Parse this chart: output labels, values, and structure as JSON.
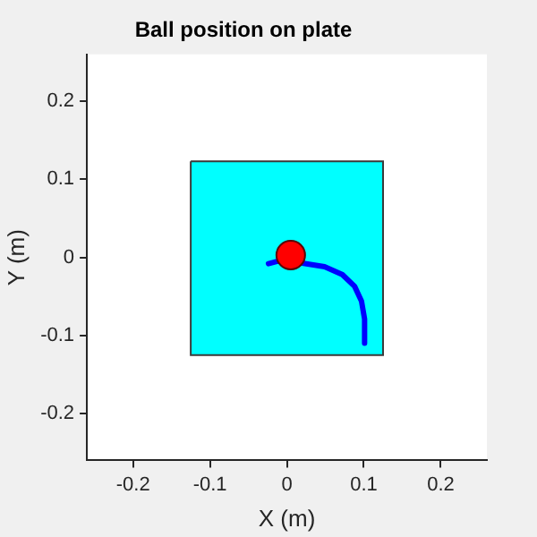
{
  "chart_data": {
    "type": "scatter",
    "title": "Ball position on plate",
    "xlabel": "X (m)",
    "ylabel": "Y (m)",
    "xlim": [
      -0.26,
      0.26
    ],
    "ylim": [
      -0.26,
      0.26
    ],
    "xticks": [
      -0.2,
      -0.1,
      0,
      0.1,
      0.2
    ],
    "yticks": [
      -0.2,
      -0.1,
      0,
      0.1,
      0.2
    ],
    "grid": false,
    "legend": false,
    "series": [
      {
        "type": "area",
        "color": "#00ffff",
        "x": [
          -0.125,
          0.125,
          0.125,
          -0.125,
          -0.125
        ],
        "values": [
          0.123,
          0.123,
          -0.125,
          -0.125,
          0.123
        ]
      },
      {
        "type": "line",
        "color": "#0000ff",
        "line_style": "solid",
        "x": [
          -0.024,
          -0.012,
          0.018,
          0.049,
          0.072,
          0.088,
          0.097,
          0.101,
          0.101
        ],
        "values": [
          -0.008,
          -0.005,
          -0.007,
          -0.012,
          -0.022,
          -0.037,
          -0.056,
          -0.079,
          -0.11
        ]
      },
      {
        "type": "scatter",
        "color": "#ff0000",
        "marker": "circle",
        "x": [
          0.005
        ],
        "values": [
          0.003
        ]
      }
    ]
  }
}
